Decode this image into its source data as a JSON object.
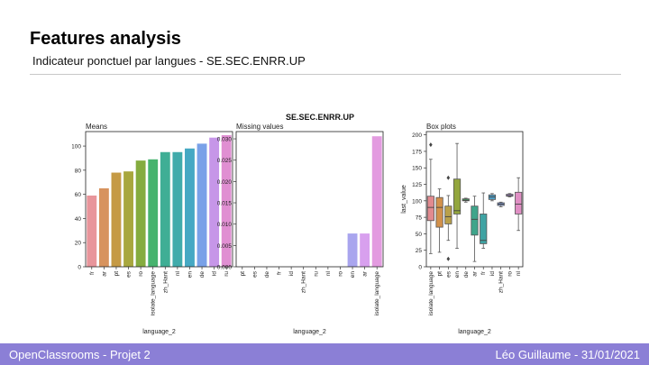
{
  "slide": {
    "title": "Features analysis",
    "subtitle": "Indicateur ponctuel par langues - SE.SEC.ENRR.UP",
    "footer_left": "OpenClassrooms - Projet 2",
    "footer_right": "Léo Guillaume - 31/01/2021",
    "footer_color": "#8b7fd6"
  },
  "figure_title": "SE.SEC.ENRR.UP",
  "chart_data": [
    {
      "type": "bar",
      "title": "Means",
      "xlabel": "language_2",
      "ylabel": "",
      "categories": [
        "fr",
        "ar",
        "pt",
        "es",
        "ro",
        "isolate_language",
        "zh_Hant",
        "nl",
        "en",
        "de",
        "id",
        "ru"
      ],
      "values": [
        59,
        65,
        78,
        79,
        88,
        89,
        95,
        95,
        98,
        102,
        107,
        109
      ],
      "colors": [
        "#e8959b",
        "#d7935e",
        "#c59a45",
        "#a8a73e",
        "#85ac3f",
        "#47b36e",
        "#3fae95",
        "#40abab",
        "#45a8c3",
        "#79a1e8",
        "#c696e8",
        "#e08fd2"
      ],
      "ylim": [
        0,
        112
      ],
      "yticks": [
        0,
        20,
        40,
        60,
        80,
        100
      ]
    },
    {
      "type": "bar",
      "title": "Missing values",
      "xlabel": "language_2",
      "ylabel": "",
      "categories": [
        "pt",
        "es",
        "de",
        "fr",
        "id",
        "zh_Hant",
        "ru",
        "nl",
        "ro",
        "en",
        "ar",
        "isolate_language"
      ],
      "values": [
        0,
        0,
        0,
        0,
        0,
        0,
        0,
        0,
        0,
        0.0078,
        0.0078,
        0.0306
      ],
      "colors": [
        "#c59a45",
        "#a8a73e",
        "#79a1e8",
        "#e8959b",
        "#c696e8",
        "#3fae95",
        "#e08fd2",
        "#40abab",
        "#85ac3f",
        "#a9a5ee",
        "#d8a0ee",
        "#e39be0"
      ],
      "ylim": [
        0,
        0.0317
      ],
      "yticks": [
        "0.000",
        "0.005",
        "0.010",
        "0.015",
        "0.020",
        "0.025",
        "0.030"
      ]
    },
    {
      "type": "box",
      "title": "Box plots",
      "xlabel": "language_2",
      "ylabel": "last_value",
      "categories": [
        "isolate_language",
        "pt",
        "es",
        "en",
        "de",
        "ar",
        "fr",
        "id",
        "zh_Hant",
        "ro",
        "nl"
      ],
      "ylim": [
        0,
        205
      ],
      "yticks": [
        0,
        25,
        50,
        75,
        100,
        125,
        150,
        175,
        200
      ],
      "boxes": [
        {
          "min": 20,
          "q1": 70,
          "median": 90,
          "q3": 107,
          "max": 163,
          "outliers": [
            185
          ],
          "color": "#e28a8f"
        },
        {
          "min": 22,
          "q1": 60,
          "median": 90,
          "q3": 105,
          "max": 118,
          "outliers": [],
          "color": "#d2914b"
        },
        {
          "min": 40,
          "q1": 65,
          "median": 76,
          "q3": 92,
          "max": 108,
          "outliers": [
            135,
            12
          ],
          "color": "#b9a04a"
        },
        {
          "min": 28,
          "q1": 80,
          "median": 85,
          "q3": 133,
          "max": 187,
          "outliers": [],
          "color": "#93a63d"
        },
        {
          "min": 98,
          "q1": 100,
          "median": 101,
          "q3": 103,
          "max": 104,
          "outliers": [],
          "color": "#4aa86a"
        },
        {
          "min": 8,
          "q1": 48,
          "median": 72,
          "q3": 92,
          "max": 107,
          "outliers": [],
          "color": "#3fa58b"
        },
        {
          "min": 28,
          "q1": 35,
          "median": 40,
          "q3": 80,
          "max": 112,
          "outliers": [],
          "color": "#3fa3a3"
        },
        {
          "min": 100,
          "q1": 102,
          "median": 106,
          "q3": 109,
          "max": 111,
          "outliers": [],
          "color": "#4f9fc6"
        },
        {
          "min": 91,
          "q1": 93,
          "median": 95,
          "q3": 97,
          "max": 98,
          "outliers": [],
          "color": "#7d9be0"
        },
        {
          "min": 106,
          "q1": 107,
          "median": 108,
          "q3": 110,
          "max": 111,
          "outliers": [],
          "color": "#b796e4"
        },
        {
          "min": 55,
          "q1": 80,
          "median": 95,
          "q3": 113,
          "max": 135,
          "outliers": [],
          "color": "#e08fc4"
        }
      ]
    }
  ]
}
